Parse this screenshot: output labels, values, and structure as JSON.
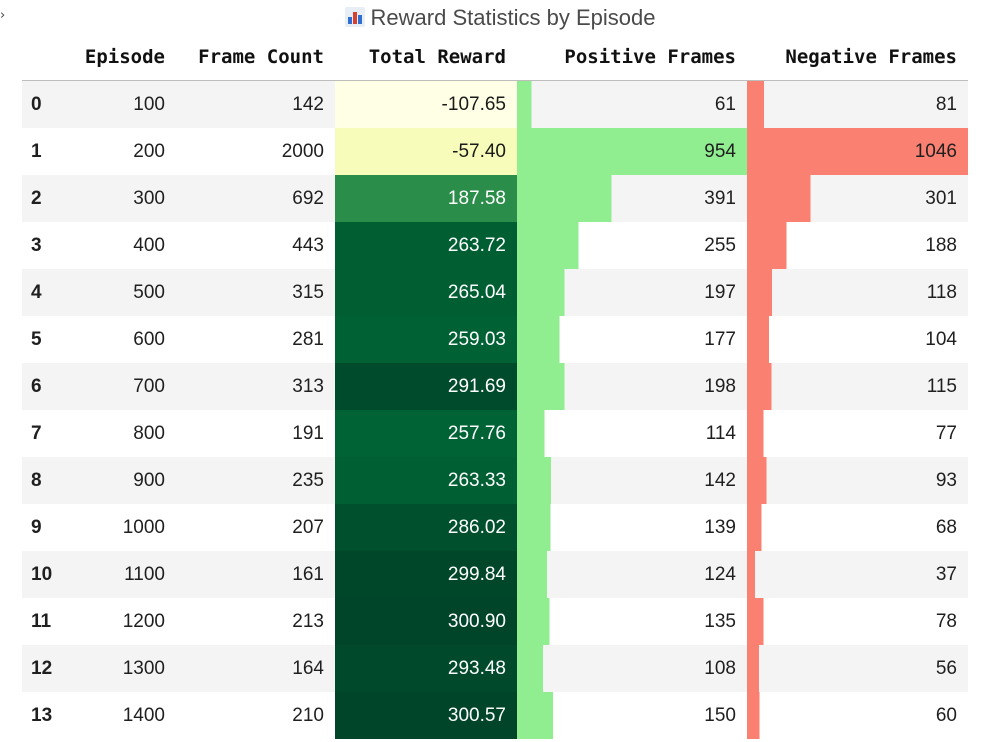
{
  "title": "Reward Statistics by Episode",
  "columns": [
    "Episode",
    "Frame Count",
    "Total Reward",
    "Positive Frames",
    "Negative Frames"
  ],
  "colors": {
    "positive_bar": "#90ee90",
    "negative_bar": "#fa8072",
    "reward_low": "#ffffe5",
    "reward_mid": "#2e8b4e",
    "reward_high": "#00441b"
  },
  "rows": [
    {
      "index": "0",
      "episode": "100",
      "frames": "142",
      "reward": "-107.65",
      "positive": "61",
      "negative": "81",
      "reward_value": -107.65,
      "positive_value": 61,
      "negative_value": 81
    },
    {
      "index": "1",
      "episode": "200",
      "frames": "2000",
      "reward": "-57.40",
      "positive": "954",
      "negative": "1046",
      "reward_value": -57.4,
      "positive_value": 954,
      "negative_value": 1046
    },
    {
      "index": "2",
      "episode": "300",
      "frames": "692",
      "reward": "187.58",
      "positive": "391",
      "negative": "301",
      "reward_value": 187.58,
      "positive_value": 391,
      "negative_value": 301
    },
    {
      "index": "3",
      "episode": "400",
      "frames": "443",
      "reward": "263.72",
      "positive": "255",
      "negative": "188",
      "reward_value": 263.72,
      "positive_value": 255,
      "negative_value": 188
    },
    {
      "index": "4",
      "episode": "500",
      "frames": "315",
      "reward": "265.04",
      "positive": "197",
      "negative": "118",
      "reward_value": 265.04,
      "positive_value": 197,
      "negative_value": 118
    },
    {
      "index": "5",
      "episode": "600",
      "frames": "281",
      "reward": "259.03",
      "positive": "177",
      "negative": "104",
      "reward_value": 259.03,
      "positive_value": 177,
      "negative_value": 104
    },
    {
      "index": "6",
      "episode": "700",
      "frames": "313",
      "reward": "291.69",
      "positive": "198",
      "negative": "115",
      "reward_value": 291.69,
      "positive_value": 198,
      "negative_value": 115
    },
    {
      "index": "7",
      "episode": "800",
      "frames": "191",
      "reward": "257.76",
      "positive": "114",
      "negative": "77",
      "reward_value": 257.76,
      "positive_value": 114,
      "negative_value": 77
    },
    {
      "index": "8",
      "episode": "900",
      "frames": "235",
      "reward": "263.33",
      "positive": "142",
      "negative": "93",
      "reward_value": 263.33,
      "positive_value": 142,
      "negative_value": 93
    },
    {
      "index": "9",
      "episode": "1000",
      "frames": "207",
      "reward": "286.02",
      "positive": "139",
      "negative": "68",
      "reward_value": 286.02,
      "positive_value": 139,
      "negative_value": 68
    },
    {
      "index": "10",
      "episode": "1100",
      "frames": "161",
      "reward": "299.84",
      "positive": "124",
      "negative": "37",
      "reward_value": 299.84,
      "positive_value": 124,
      "negative_value": 37
    },
    {
      "index": "11",
      "episode": "1200",
      "frames": "213",
      "reward": "300.90",
      "positive": "135",
      "negative": "78",
      "reward_value": 300.9,
      "positive_value": 135,
      "negative_value": 78
    },
    {
      "index": "12",
      "episode": "1300",
      "frames": "164",
      "reward": "293.48",
      "positive": "108",
      "negative": "56",
      "reward_value": 293.48,
      "positive_value": 108,
      "negative_value": 56
    },
    {
      "index": "13",
      "episode": "1400",
      "frames": "210",
      "reward": "300.57",
      "positive": "150",
      "negative": "60",
      "reward_value": 300.57,
      "positive_value": 150,
      "negative_value": 60
    }
  ]
}
